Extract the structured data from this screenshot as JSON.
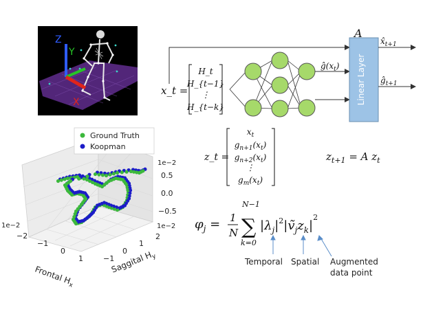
{
  "skeleton": {
    "axis_z": "Z",
    "axis_y": "Y",
    "axis_x": "X",
    "colors": {
      "background": "#000000",
      "floor": "#5b2a86",
      "z": "#2f5cff",
      "y": "#27c427",
      "x": "#e0241b"
    }
  },
  "network": {
    "matrix_label": "A",
    "linear_layer": "Linear Layer",
    "ghat_input": "ĝ(x_t)",
    "out_top": "x̂_{t+1}",
    "out_bottom": "ĝ_{t+1}",
    "colors": {
      "node": "#a6d96a",
      "layer": "#9dc3e6"
    }
  },
  "equations": {
    "xt_lhs": "x_t =",
    "xt_entries": [
      "H_t",
      "H_{t−1}",
      "⋮",
      "H_{t−k}"
    ],
    "zt_lhs": "z_t =",
    "zt_entries": [
      "x_t",
      "g_{n+1}(x_t)",
      "g_{n+2}(x_t)",
      "⋮",
      "g_m(x_t)"
    ],
    "zt1": "z_{t+1} = A z_t",
    "phi": "φ_j = 1/N Σ_{k=0}^{N−1} |λ_j|^2 |ṽ_j z_k|^2"
  },
  "annotations": {
    "temporal": "Temporal",
    "spatial": "Spatial",
    "augmented_line1": "Augmented",
    "augmented_line2": "data point"
  },
  "plot3d": {
    "legend": [
      {
        "label": "Ground Truth",
        "color": "#3cb83c"
      },
      {
        "label": "Koopman",
        "color": "#1c1cc8"
      }
    ],
    "z_ticks": [
      "0.5",
      "0.0",
      "−0.5"
    ],
    "z_exp": "1e−2",
    "x_ticks": [
      "−2",
      "−1",
      "0",
      "1"
    ],
    "x_exp": "1e−2",
    "x_label": "Frontal H",
    "x_sub": "x",
    "y_ticks": [
      "−1",
      "0",
      "1",
      "2"
    ],
    "y_exp": "1e−2",
    "y_label": "Saggital H",
    "y_sub": "y"
  }
}
